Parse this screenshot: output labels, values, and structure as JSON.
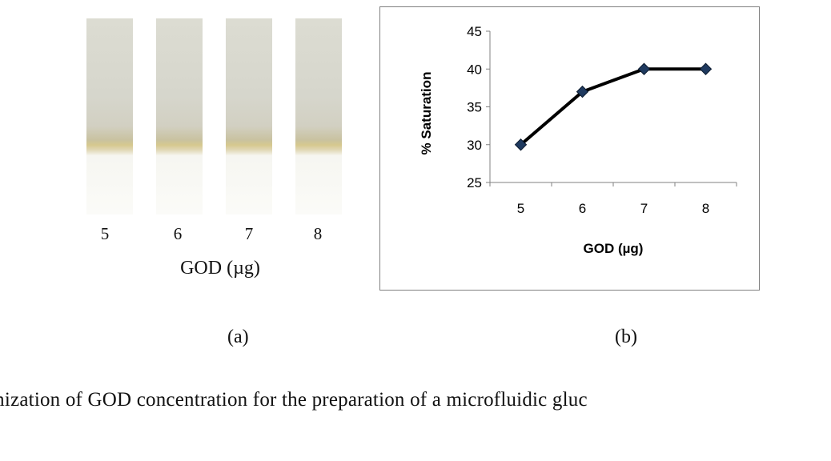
{
  "panel_a": {
    "strip_labels": [
      "5",
      "6",
      "7",
      "8"
    ],
    "axis_label": "GOD (µg)",
    "panel_label": "(a)"
  },
  "panel_b": {
    "panel_label": "(b)"
  },
  "chart_data": {
    "type": "line",
    "x": [
      5,
      6,
      7,
      8
    ],
    "categories": [
      "5",
      "6",
      "7",
      "8"
    ],
    "series": [
      {
        "values": [
          30,
          37,
          40,
          40
        ],
        "color": "#000000",
        "marker_color": "#1f3a5f"
      }
    ],
    "title": "",
    "xlabel": "GOD (µg)",
    "ylabel": "% Saturation",
    "ylim": [
      25,
      45
    ],
    "yticks": [
      25,
      30,
      35,
      40,
      45
    ],
    "grid": false,
    "legend": "none"
  },
  "caption": "timization of GOD concentration for the preparation of a microfluidic gluc"
}
